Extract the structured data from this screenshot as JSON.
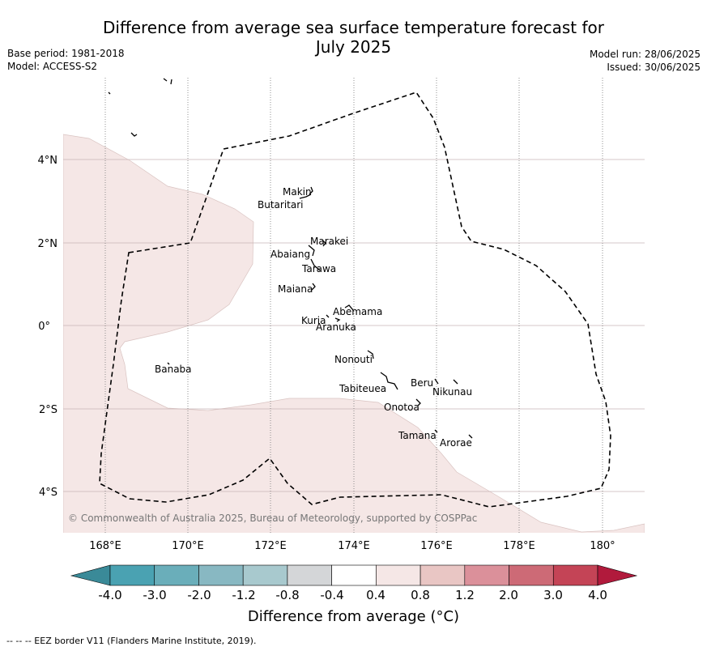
{
  "title": {
    "line1": "Difference from average sea surface temperature forecast for",
    "line2": "July 2025"
  },
  "meta_left": {
    "base_period": "Base period: 1981-2018",
    "model": "Model: ACCESS-S2"
  },
  "meta_right": {
    "model_run": "Model run: 28/06/2025",
    "issued": "Issued: 30/06/2025"
  },
  "map": {
    "lat_ticks": [
      "4°N",
      "2°N",
      "0°",
      "2°S",
      "4°S"
    ],
    "lon_ticks": [
      "168°E",
      "170°E",
      "172°E",
      "174°E",
      "176°E",
      "178°E",
      "180°"
    ],
    "labels": [
      "Makin",
      "Butaritari",
      "Marakei",
      "Abaiang",
      "Tarawa",
      "Maiana",
      "Abemama",
      "Kuria",
      "Aranuka",
      "Nonouti",
      "Banaba",
      "Beru",
      "Nikunau",
      "Tabiteuea",
      "Onotoa",
      "Tamana",
      "Arorae"
    ],
    "copyright": "© Commonwealth of Australia 2025, Bureau of Meteorology, supported by COSPPac",
    "anomaly_fill": "#f5e7e6",
    "eez_color": "#000000"
  },
  "colorbar": {
    "title": "Difference from average (°C)",
    "ticks": [
      "-4.0",
      "-3.0",
      "-2.0",
      "-1.2",
      "-0.8",
      "-0.4",
      "0.4",
      "0.8",
      "1.2",
      "2.0",
      "3.0",
      "4.0"
    ],
    "colors": [
      "#3a8a98",
      "#4aa2b2",
      "#6aaeba",
      "#88b8c2",
      "#a8c9ce",
      "#d4d6d8",
      "#ffffff",
      "#f5e7e6",
      "#e9c6c4",
      "#db909a",
      "#cd6a76",
      "#c44456",
      "#b11a3c"
    ]
  },
  "footnote": "--  --  -- EEZ border V11 (Flanders Marine Institute, 2019)."
}
